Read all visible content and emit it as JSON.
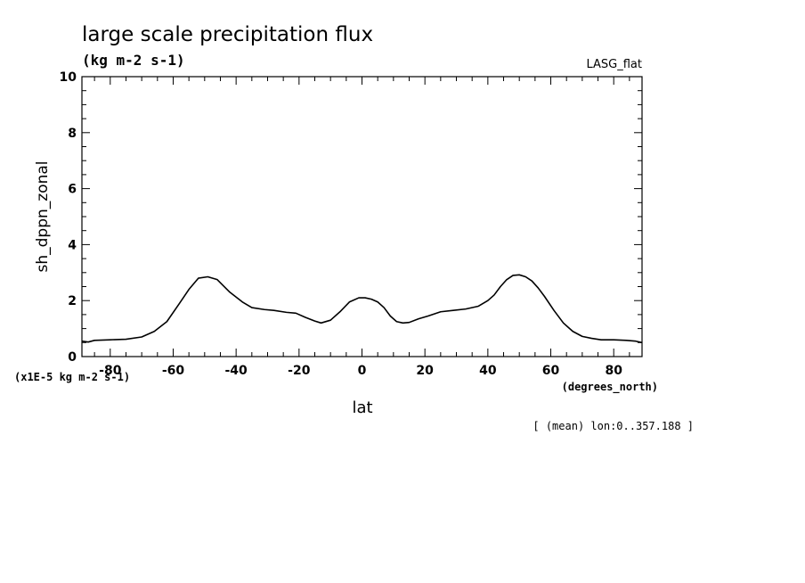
{
  "chart_data": {
    "type": "line",
    "title": "large scale precipitation flux",
    "subtitle": "(kg m-2 s-1)",
    "dataset_label": "LASG_flat",
    "xlabel": "lat",
    "x_units": "(degrees_north)",
    "ylabel": "sh_dppn_zonal",
    "y_scale_note": "(x1E-5 kg m-2 s-1)",
    "footnote": "[ (mean) lon:0..357.188 ]",
    "xlim": [
      -89,
      89
    ],
    "ylim": [
      0,
      10
    ],
    "x_ticks": [
      "-80",
      "-60",
      "-40",
      "-20",
      "0",
      "20",
      "40",
      "60",
      "80"
    ],
    "y_ticks": [
      "0",
      "2",
      "4",
      "6",
      "8",
      "10"
    ],
    "line_color": "#000000",
    "x": [
      -89,
      -87,
      -85,
      -80,
      -75,
      -70,
      -66,
      -62,
      -58,
      -55,
      -52,
      -49,
      -46,
      -42,
      -38,
      -35,
      -31,
      -28,
      -24,
      -21,
      -18,
      -15,
      -13,
      -10,
      -7,
      -4,
      -1,
      1,
      3,
      5,
      7,
      9,
      11,
      13,
      15,
      18,
      21,
      25,
      29,
      33,
      37,
      40,
      42,
      44,
      46,
      48,
      50,
      52,
      54,
      56,
      58,
      61,
      64,
      67,
      70,
      73,
      76,
      80,
      84,
      87,
      89
    ],
    "y": [
      0.55,
      0.52,
      0.58,
      0.6,
      0.62,
      0.7,
      0.9,
      1.25,
      1.9,
      2.4,
      2.8,
      2.85,
      2.75,
      2.3,
      1.95,
      1.75,
      1.68,
      1.65,
      1.58,
      1.55,
      1.4,
      1.27,
      1.2,
      1.3,
      1.6,
      1.95,
      2.1,
      2.1,
      2.05,
      1.95,
      1.75,
      1.45,
      1.25,
      1.2,
      1.22,
      1.35,
      1.45,
      1.6,
      1.65,
      1.7,
      1.8,
      2.0,
      2.2,
      2.5,
      2.75,
      2.9,
      2.92,
      2.85,
      2.7,
      2.45,
      2.15,
      1.65,
      1.2,
      0.9,
      0.72,
      0.65,
      0.6,
      0.6,
      0.58,
      0.55,
      0.5
    ]
  }
}
